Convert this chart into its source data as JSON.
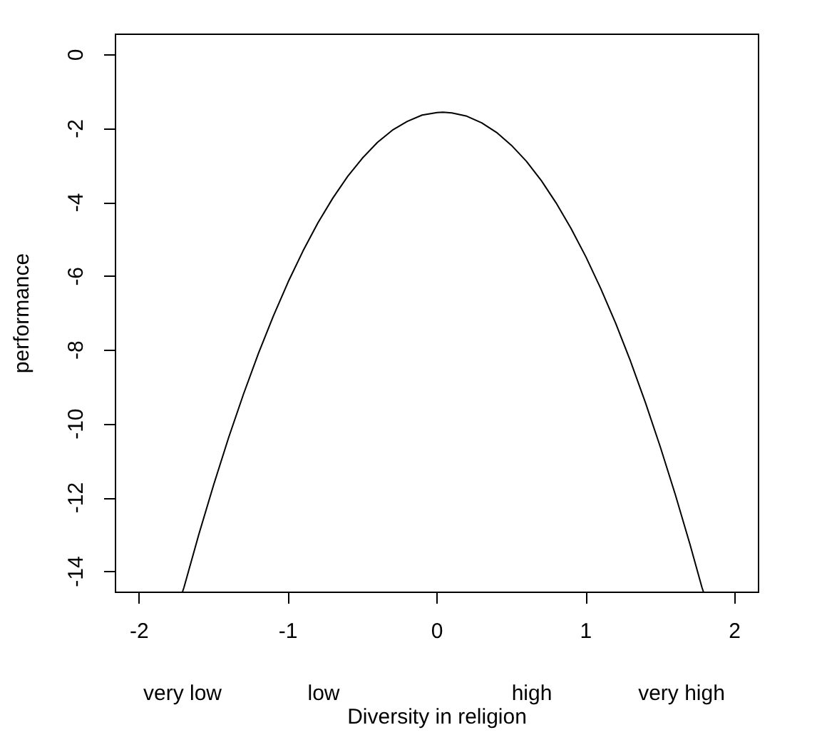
{
  "chart_data": {
    "type": "line",
    "xlabel": "Diversity in religion",
    "ylabel": "performance",
    "x": [
      -1.71,
      -1.7,
      -1.6,
      -1.5,
      -1.4,
      -1.3,
      -1.2,
      -1.1,
      -1.0,
      -0.9,
      -0.8,
      -0.7,
      -0.6,
      -0.5,
      -0.4,
      -0.3,
      -0.2,
      -0.1,
      0.0,
      0.04,
      0.1,
      0.2,
      0.3,
      0.4,
      0.5,
      0.6,
      0.7,
      0.8,
      0.9,
      1.0,
      1.1,
      1.2,
      1.3,
      1.4,
      1.5,
      1.6,
      1.7,
      1.78,
      1.79
    ],
    "values": [
      -14.55,
      -14.43,
      -12.99,
      -11.64,
      -10.37,
      -9.19,
      -8.09,
      -7.08,
      -6.15,
      -5.31,
      -4.55,
      -3.88,
      -3.29,
      -2.79,
      -2.37,
      -2.04,
      -1.8,
      -1.63,
      -1.56,
      -1.55,
      -1.57,
      -1.66,
      -1.84,
      -2.1,
      -2.45,
      -2.88,
      -3.4,
      -4.01,
      -4.7,
      -5.47,
      -6.33,
      -7.27,
      -8.3,
      -9.42,
      -10.62,
      -11.9,
      -13.27,
      -14.43,
      -14.55
    ],
    "color": "#000000",
    "marker": "none",
    "xlim": [
      -2.16,
      2.16
    ],
    "xticks": [
      -2,
      -1,
      0,
      1,
      2
    ],
    "ylim": [
      -14.56,
      0.56
    ],
    "yticks": [
      0,
      -2,
      -4,
      -6,
      -8,
      -10,
      -12,
      -14
    ],
    "annotations": [
      "very low",
      "low",
      "high",
      "very high"
    ]
  }
}
